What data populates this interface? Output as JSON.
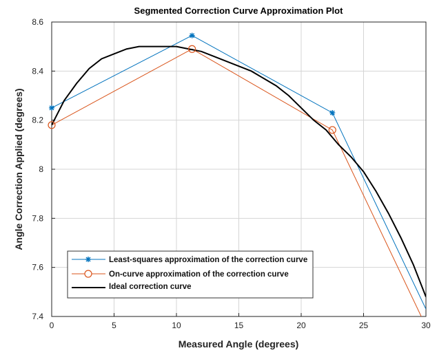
{
  "chart_data": {
    "type": "line",
    "title": "Segmented Correction Curve Approximation Plot",
    "xlabel": "Measured Angle (degrees)",
    "ylabel": "Angle Correction Applied (degrees)",
    "xlim": [
      0,
      30
    ],
    "ylim": [
      7.4,
      8.6
    ],
    "xticks": [
      "0",
      "5",
      "10",
      "15",
      "20",
      "25",
      "30"
    ],
    "yticks": [
      "7.4",
      "7.6",
      "7.8",
      "8",
      "8.2",
      "8.4",
      "8.6"
    ],
    "xtick_values": [
      0,
      5,
      10,
      15,
      20,
      25,
      30
    ],
    "ytick_values": [
      7.4,
      7.6,
      7.8,
      8.0,
      8.2,
      8.4,
      8.6
    ],
    "grid": true,
    "legend_position": "bottom-left",
    "series": [
      {
        "name": "Least-squares approximation of the correction curve",
        "color": "#0072BD",
        "marker": "asterisk",
        "x": [
          0,
          11.25,
          22.5,
          30
        ],
        "y": [
          8.25,
          8.545,
          8.23,
          7.43
        ],
        "marker_count": 3
      },
      {
        "name": "On-curve approximation of the correction curve",
        "color": "#D95319",
        "marker": "circle",
        "x": [
          0,
          11.25,
          22.5,
          30
        ],
        "y": [
          8.18,
          8.49,
          8.16,
          7.36
        ],
        "marker_count": 3
      },
      {
        "name": "Ideal correction curve",
        "color": "#000000",
        "marker": "none",
        "x": [
          0,
          1,
          2,
          3,
          4,
          5,
          6,
          7,
          8,
          9,
          10,
          11,
          12,
          13,
          14,
          15,
          16,
          17,
          18,
          19,
          20,
          21,
          22,
          23,
          24,
          25,
          26,
          27,
          28,
          29,
          30
        ],
        "y": [
          8.18,
          8.28,
          8.35,
          8.41,
          8.45,
          8.47,
          8.49,
          8.5,
          8.5,
          8.5,
          8.5,
          8.49,
          8.48,
          8.46,
          8.44,
          8.42,
          8.4,
          8.37,
          8.34,
          8.3,
          8.25,
          8.2,
          8.16,
          8.1,
          8.05,
          7.99,
          7.91,
          7.82,
          7.72,
          7.61,
          7.48
        ]
      }
    ]
  }
}
